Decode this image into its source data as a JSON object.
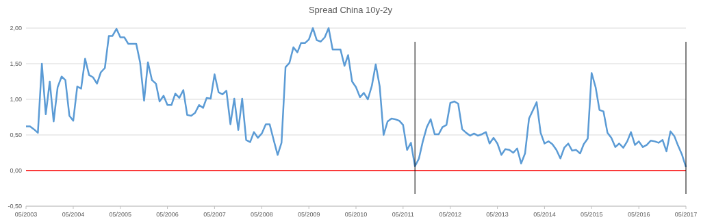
{
  "chart_data": {
    "type": "line",
    "title": "Spread China 10y-2y",
    "x": [
      "2003-05",
      "2003-06",
      "2003-07",
      "2003-08",
      "2003-09",
      "2003-10",
      "2003-11",
      "2003-12",
      "2004-01",
      "2004-02",
      "2004-03",
      "2004-04",
      "2004-05",
      "2004-06",
      "2004-07",
      "2004-08",
      "2004-09",
      "2004-10",
      "2004-11",
      "2004-12",
      "2005-01",
      "2005-02",
      "2005-03",
      "2005-04",
      "2005-05",
      "2005-06",
      "2005-07",
      "2005-08",
      "2005-09",
      "2005-10",
      "2005-11",
      "2005-12",
      "2006-01",
      "2006-02",
      "2006-03",
      "2006-04",
      "2006-05",
      "2006-06",
      "2006-07",
      "2006-08",
      "2006-09",
      "2006-10",
      "2006-11",
      "2006-12",
      "2007-01",
      "2007-02",
      "2007-03",
      "2007-04",
      "2007-05",
      "2007-06",
      "2007-07",
      "2007-08",
      "2007-09",
      "2007-10",
      "2007-11",
      "2007-12",
      "2008-01",
      "2008-02",
      "2008-03",
      "2008-04",
      "2008-05",
      "2008-06",
      "2008-07",
      "2008-08",
      "2008-09",
      "2008-10",
      "2008-11",
      "2008-12",
      "2009-01",
      "2009-02",
      "2009-03",
      "2009-04",
      "2009-05",
      "2009-06",
      "2009-07",
      "2009-08",
      "2009-09",
      "2009-10",
      "2009-11",
      "2009-12",
      "2010-01",
      "2010-02",
      "2010-03",
      "2010-04",
      "2010-05",
      "2010-06",
      "2010-07",
      "2010-08",
      "2010-09",
      "2010-10",
      "2010-11",
      "2010-12",
      "2011-01",
      "2011-02",
      "2011-03",
      "2011-04",
      "2011-05",
      "2011-06",
      "2011-07",
      "2011-08",
      "2011-09",
      "2011-10",
      "2011-11",
      "2011-12",
      "2012-01",
      "2012-02",
      "2012-03",
      "2012-04",
      "2012-05",
      "2012-06",
      "2012-07",
      "2012-08",
      "2012-09",
      "2012-10",
      "2012-11",
      "2012-12",
      "2013-01",
      "2013-02",
      "2013-03",
      "2013-04",
      "2013-05",
      "2013-06",
      "2013-07",
      "2013-08",
      "2013-09",
      "2013-10",
      "2013-11",
      "2013-12",
      "2014-01",
      "2014-02",
      "2014-03",
      "2014-04",
      "2014-05",
      "2014-06",
      "2014-07",
      "2014-08",
      "2014-09",
      "2014-10",
      "2014-11",
      "2014-12",
      "2015-01",
      "2015-02",
      "2015-03",
      "2015-04",
      "2015-05",
      "2015-06",
      "2015-07",
      "2015-08",
      "2015-09",
      "2015-10",
      "2015-11",
      "2015-12",
      "2016-01",
      "2016-02",
      "2016-03",
      "2016-04",
      "2016-05",
      "2016-06",
      "2016-07",
      "2016-08",
      "2016-09",
      "2016-10",
      "2016-11",
      "2016-12",
      "2017-01",
      "2017-02",
      "2017-03",
      "2017-04",
      "2017-05"
    ],
    "series": [
      {
        "color": "#5b9bd5",
        "values": [
          0.62,
          0.62,
          0.58,
          0.53,
          1.5,
          0.79,
          1.25,
          0.69,
          1.17,
          1.32,
          1.27,
          0.77,
          0.7,
          1.18,
          1.15,
          1.57,
          1.34,
          1.31,
          1.22,
          1.38,
          1.44,
          1.89,
          1.89,
          1.99,
          1.87,
          1.87,
          1.78,
          1.78,
          1.78,
          1.52,
          0.98,
          1.52,
          1.27,
          1.22,
          0.97,
          1.05,
          0.92,
          0.92,
          1.08,
          1.02,
          1.13,
          0.78,
          0.77,
          0.81,
          0.92,
          0.88,
          1.02,
          1.01,
          1.35,
          1.1,
          1.07,
          1.12,
          0.65,
          1.01,
          0.57,
          1.01,
          0.43,
          0.4,
          0.54,
          0.46,
          0.52,
          0.65,
          0.65,
          0.43,
          0.22,
          0.39,
          1.45,
          1.51,
          1.73,
          1.66,
          1.79,
          1.79,
          1.84,
          2.0,
          1.83,
          1.81,
          1.87,
          2.0,
          1.7,
          1.7,
          1.7,
          1.47,
          1.62,
          1.25,
          1.17,
          1.03,
          1.09,
          1.0,
          1.19,
          1.49,
          1.18,
          0.5,
          0.69,
          0.73,
          0.72,
          0.7,
          0.64,
          0.29,
          0.39,
          0.06,
          0.17,
          0.41,
          0.61,
          0.72,
          0.51,
          0.51,
          0.61,
          0.64,
          0.95,
          0.97,
          0.94,
          0.58,
          0.53,
          0.49,
          0.52,
          0.49,
          0.51,
          0.54,
          0.38,
          0.46,
          0.38,
          0.22,
          0.3,
          0.29,
          0.25,
          0.31,
          0.1,
          0.24,
          0.73,
          0.85,
          0.96,
          0.53,
          0.38,
          0.41,
          0.37,
          0.29,
          0.17,
          0.32,
          0.38,
          0.28,
          0.29,
          0.24,
          0.37,
          0.45,
          1.37,
          1.17,
          0.85,
          0.83,
          0.53,
          0.46,
          0.33,
          0.38,
          0.32,
          0.41,
          0.54,
          0.36,
          0.41,
          0.33,
          0.36,
          0.42,
          0.41,
          0.39,
          0.43,
          0.27,
          0.55,
          0.48,
          0.35,
          0.22,
          0.05
        ]
      }
    ],
    "xlim": [
      "2003-05",
      "2017-05"
    ],
    "xticks": [
      {
        "value": "2003-05",
        "label": "05/2003"
      },
      {
        "value": "2004-05",
        "label": "05/2004"
      },
      {
        "value": "2005-05",
        "label": "05/2005"
      },
      {
        "value": "2006-05",
        "label": "05/2006"
      },
      {
        "value": "2007-05",
        "label": "05/2007"
      },
      {
        "value": "2008-05",
        "label": "05/2008"
      },
      {
        "value": "2009-05",
        "label": "05/2009"
      },
      {
        "value": "2010-05",
        "label": "05/2010"
      },
      {
        "value": "2011-05",
        "label": "05/2011"
      },
      {
        "value": "2012-05",
        "label": "05/2012"
      },
      {
        "value": "2013-05",
        "label": "05/2013"
      },
      {
        "value": "2014-05",
        "label": "05/2014"
      },
      {
        "value": "2015-05",
        "label": "05/2015"
      },
      {
        "value": "2016-05",
        "label": "05/2016"
      },
      {
        "value": "2017-05",
        "label": "05/2017"
      }
    ],
    "ylim": [
      -0.5,
      2
    ],
    "yticks": [
      {
        "value": -0.5,
        "label": "-0,50"
      },
      {
        "value": 0,
        "label": "0,00"
      },
      {
        "value": 0.5,
        "label": "0,50"
      },
      {
        "value": 1,
        "label": "1,00"
      },
      {
        "value": 1.5,
        "label": "1,50"
      },
      {
        "value": 2,
        "label": "2,00"
      }
    ],
    "grid": "y",
    "ref_lines": [
      {
        "axis": "y",
        "value": 0,
        "color": "#ff0000"
      },
      {
        "axis": "x",
        "value": "2011-08",
        "color": "#000000"
      },
      {
        "axis": "x",
        "value": "2017-05",
        "color": "#000000"
      }
    ]
  }
}
